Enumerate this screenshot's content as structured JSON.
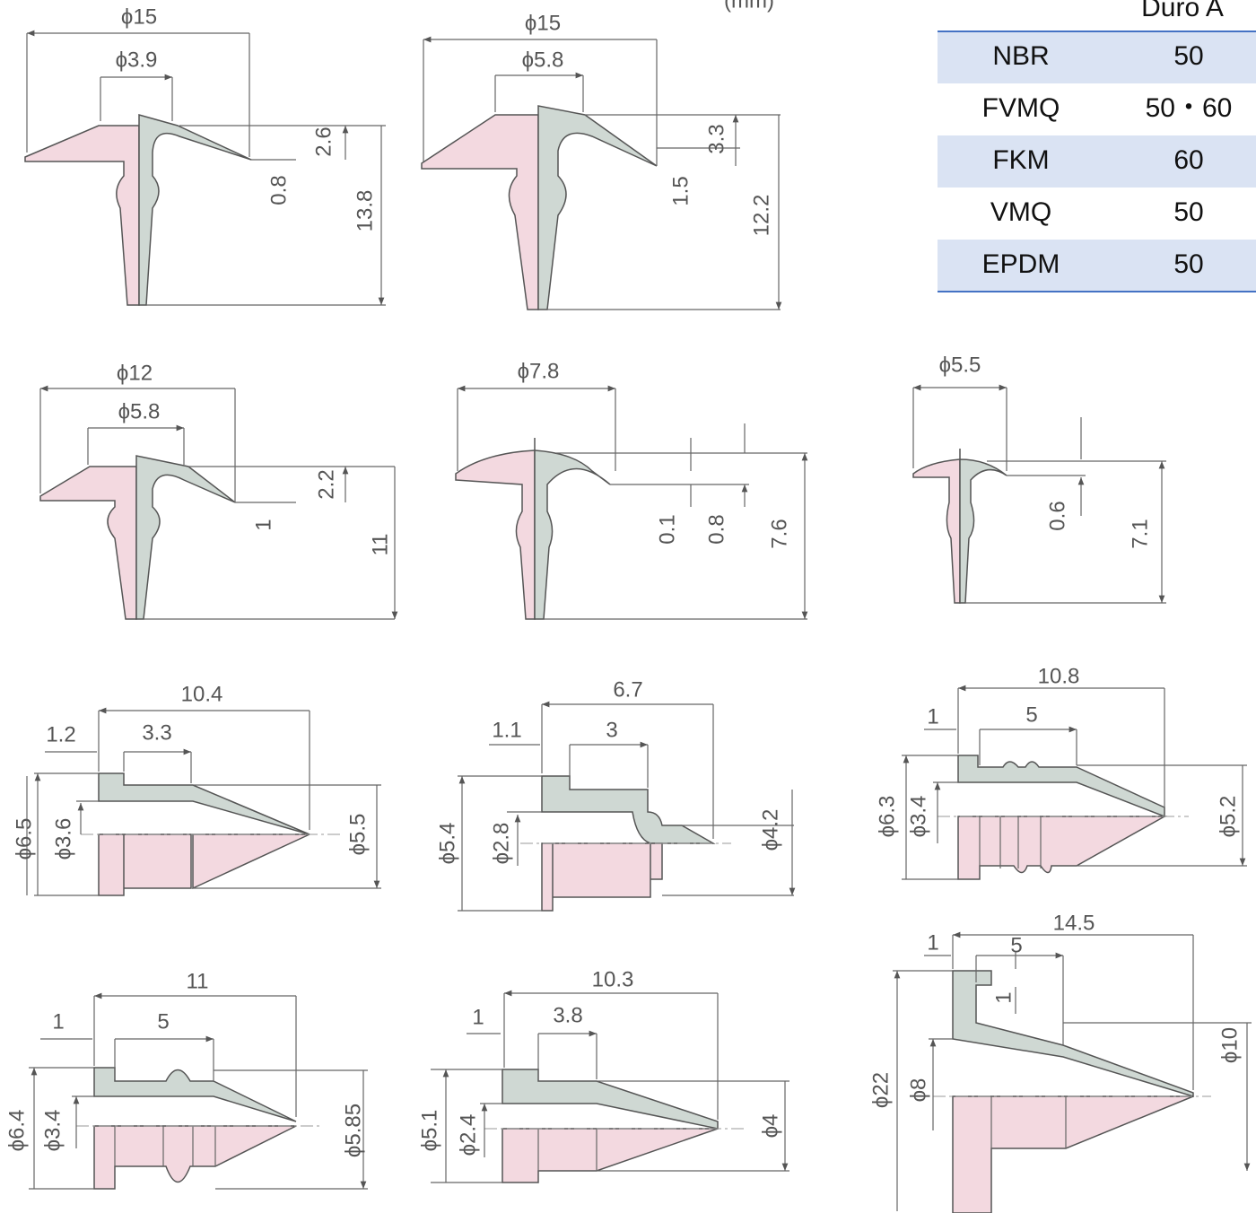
{
  "unit": "(mm)",
  "table": {
    "header": "Duro A",
    "rows": [
      [
        "NBR",
        "50"
      ],
      [
        "FVMQ",
        "50・60"
      ],
      [
        "FKM",
        "60"
      ],
      [
        "VMQ",
        "50"
      ],
      [
        "EPDM",
        "50"
      ]
    ]
  },
  "parts": [
    {
      "dims": [
        "ϕ15",
        "ϕ3.9",
        "2.6",
        "0.8",
        "13.8"
      ]
    },
    {
      "dims": [
        "ϕ15",
        "ϕ5.8",
        "3.3",
        "1.5",
        "12.2"
      ]
    },
    {
      "dims": [
        "ϕ12",
        "ϕ5.8",
        "2.2",
        "1",
        "11"
      ]
    },
    {
      "dims": [
        "ϕ7.8",
        "0.1",
        "0.8",
        "7.6"
      ]
    },
    {
      "dims": [
        "ϕ5.5",
        "0.6",
        "7.1"
      ]
    },
    {
      "dims": [
        "10.4",
        "1.2",
        "3.3",
        "ϕ6.5",
        "ϕ3.6",
        "ϕ5.5"
      ]
    },
    {
      "dims": [
        "6.7",
        "1.1",
        "3",
        "ϕ5.4",
        "ϕ2.8",
        "ϕ4.2"
      ]
    },
    {
      "dims": [
        "10.8",
        "1",
        "5",
        "ϕ6.3",
        "ϕ3.4",
        "ϕ5.2"
      ]
    },
    {
      "dims": [
        "11",
        "1",
        "5",
        "ϕ6.4",
        "ϕ3.4",
        "ϕ5.85"
      ]
    },
    {
      "dims": [
        "10.3",
        "1",
        "3.8",
        "ϕ5.1",
        "ϕ2.4",
        "ϕ4"
      ]
    },
    {
      "dims": [
        "14.5",
        "1",
        "5",
        "1",
        "ϕ22",
        "ϕ8",
        "ϕ10"
      ]
    }
  ]
}
